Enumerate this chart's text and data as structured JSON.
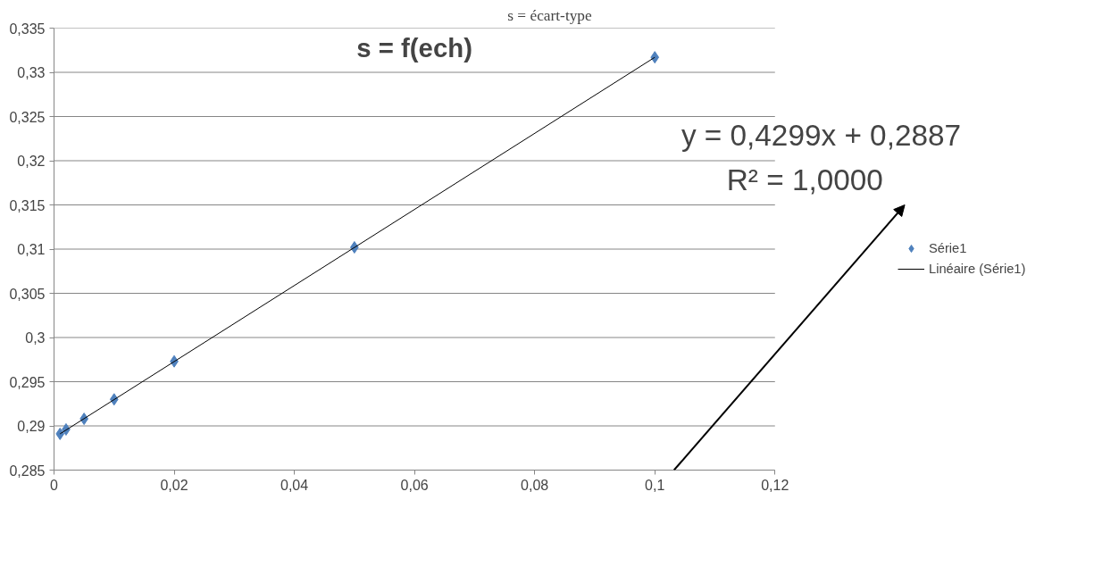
{
  "chart_data": {
    "type": "scatter",
    "title": "s = f(ech)",
    "annotations": [
      "s = écart-type",
      "y = 0,4299x + 0,2887",
      "R² = 1,0000"
    ],
    "series": [
      {
        "name": "Série1",
        "color": "#4f81bd",
        "marker": "diamond",
        "x": [
          0.001,
          0.002,
          0.005,
          0.01,
          0.02,
          0.05,
          0.1
        ],
        "values": [
          0.2891,
          0.2896,
          0.2908,
          0.293,
          0.2973,
          0.3102,
          0.3317
        ]
      },
      {
        "name": "Linéaire (Série1)",
        "type": "line",
        "color": "#000000",
        "line_style": "solid",
        "x": [
          0.001,
          0.1
        ],
        "values": [
          0.2891,
          0.3317
        ]
      }
    ],
    "xlim": [
      0,
      0.12
    ],
    "ylim": [
      0.285,
      0.335
    ],
    "xticks": [
      0,
      {
        "value": 0.02,
        "label": "0,02"
      },
      {
        "value": 0.04,
        "label": "0,04"
      },
      {
        "value": 0.06,
        "label": "0,06"
      },
      {
        "value": 0.08,
        "label": "0,08"
      },
      {
        "value": 0.1,
        "label": "0,1"
      },
      {
        "value": 0.12,
        "label": "0,12"
      }
    ],
    "yticks": [
      {
        "value": 0.285,
        "label": "0,285"
      },
      {
        "value": 0.29,
        "label": "0,29"
      },
      {
        "value": 0.295,
        "label": "0,295"
      },
      {
        "value": 0.3,
        "label": "0,3"
      },
      {
        "value": 0.305,
        "label": "0,305"
      },
      {
        "value": 0.31,
        "label": "0,31"
      },
      {
        "value": 0.315,
        "label": "0,315"
      },
      {
        "value": 0.32,
        "label": "0,32"
      },
      {
        "value": 0.325,
        "label": "0,325"
      },
      {
        "value": 0.33,
        "label": "0,33"
      },
      {
        "value": 0.335,
        "label": "0,335"
      }
    ],
    "grid": "y",
    "legend": "right"
  }
}
